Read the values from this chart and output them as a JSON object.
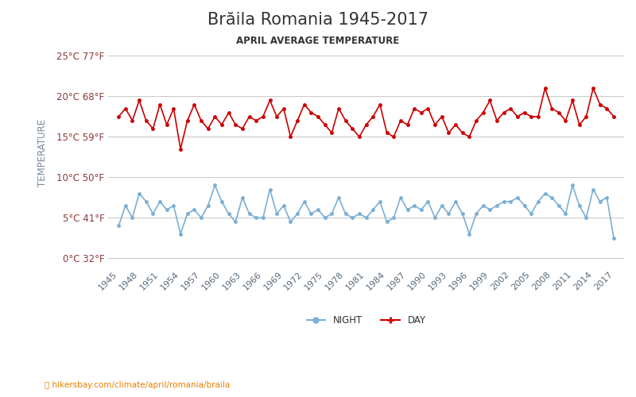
{
  "title": "Brăila Romania 1945-2017",
  "subtitle": "APRIL AVERAGE TEMPERATURE",
  "ylabel": "TEMPERATURE",
  "watermark": "hikersbay.com/climate/april/romania/braila",
  "years": [
    1945,
    1946,
    1947,
    1948,
    1949,
    1950,
    1951,
    1952,
    1953,
    1954,
    1955,
    1956,
    1957,
    1958,
    1959,
    1960,
    1961,
    1962,
    1963,
    1964,
    1965,
    1966,
    1967,
    1968,
    1969,
    1970,
    1971,
    1972,
    1973,
    1974,
    1975,
    1976,
    1977,
    1978,
    1979,
    1980,
    1981,
    1982,
    1983,
    1984,
    1985,
    1986,
    1987,
    1988,
    1989,
    1990,
    1991,
    1992,
    1993,
    1994,
    1995,
    1996,
    1997,
    1998,
    1999,
    2000,
    2001,
    2002,
    2003,
    2004,
    2005,
    2006,
    2007,
    2008,
    2009,
    2010,
    2011,
    2012,
    2013,
    2014,
    2015,
    2016,
    2017
  ],
  "day": [
    17.5,
    18.5,
    17.0,
    19.5,
    17.0,
    16.0,
    19.0,
    16.5,
    18.5,
    13.5,
    17.0,
    19.0,
    17.0,
    16.0,
    17.5,
    16.5,
    18.0,
    16.5,
    16.0,
    17.5,
    17.0,
    17.5,
    19.5,
    17.5,
    18.5,
    15.0,
    17.0,
    19.0,
    18.0,
    17.5,
    16.5,
    15.5,
    18.5,
    17.0,
    16.0,
    15.0,
    16.5,
    17.5,
    19.0,
    15.5,
    15.0,
    17.0,
    16.5,
    18.5,
    18.0,
    18.5,
    16.5,
    17.5,
    15.5,
    16.5,
    15.5,
    15.0,
    17.0,
    18.0,
    19.5,
    17.0,
    18.0,
    18.5,
    17.5,
    18.0,
    17.5,
    17.5,
    21.0,
    18.5,
    18.0,
    17.0,
    19.5,
    16.5,
    17.5,
    21.0,
    19.0,
    18.5,
    17.5
  ],
  "night": [
    4.0,
    6.5,
    5.0,
    8.0,
    7.0,
    5.5,
    7.0,
    6.0,
    6.5,
    3.0,
    5.5,
    6.0,
    5.0,
    6.5,
    9.0,
    7.0,
    5.5,
    4.5,
    7.5,
    5.5,
    5.0,
    5.0,
    8.5,
    5.5,
    6.5,
    4.5,
    5.5,
    7.0,
    5.5,
    6.0,
    5.0,
    5.5,
    7.5,
    5.5,
    5.0,
    5.5,
    5.0,
    6.0,
    7.0,
    4.5,
    5.0,
    7.5,
    6.0,
    6.5,
    6.0,
    7.0,
    5.0,
    6.5,
    5.5,
    7.0,
    5.5,
    3.0,
    5.5,
    6.5,
    6.0,
    6.5,
    7.0,
    7.0,
    7.5,
    6.5,
    5.5,
    7.0,
    8.0,
    7.5,
    6.5,
    5.5,
    9.0,
    6.5,
    5.0,
    8.5,
    7.0,
    7.5,
    2.5
  ],
  "day_color": "#cc0000",
  "night_color": "#7bafd4",
  "title_color": "#333333",
  "subtitle_color": "#333333",
  "ylabel_color": "#7a8a99",
  "tick_color": "#8b3a3a",
  "grid_color": "#cccccc",
  "background_color": "#ffffff",
  "yticks_c": [
    0,
    5,
    10,
    15,
    20,
    25
  ],
  "yticks_f": [
    32,
    41,
    50,
    59,
    68,
    77
  ],
  "ylim": [
    -1,
    27
  ],
  "watermark_color": "#e67e00"
}
